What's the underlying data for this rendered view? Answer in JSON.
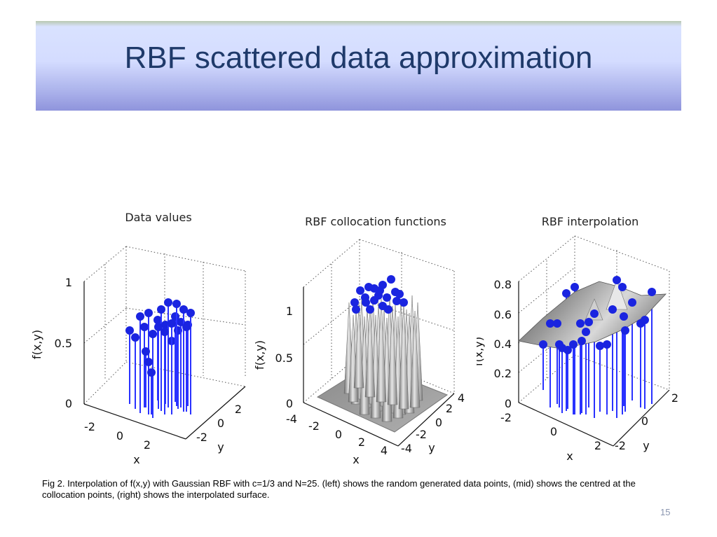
{
  "slide": {
    "title": "RBF scattered data approximation",
    "caption": "Fig 2. Interpolation of f(x,y) with Gaussian RBF with c=1/3 and N=25. (left) shows the random generated data points, (mid) shows the centred at the collocation points, (right) shows the interpolated surface.",
    "page_number": "15"
  },
  "colors": {
    "title_text": "#1f3a6a",
    "marker": "#1a24e0",
    "stem": "#2a32ff",
    "surface": "#9a9a9a"
  },
  "plots": [
    {
      "title": "Data values",
      "zlabel": "f(x,y)",
      "xlabel": "x",
      "ylabel": "y",
      "z_ticks": [
        "1",
        "0.5",
        "0"
      ],
      "x_ticks": [
        "-2",
        "0",
        "2"
      ],
      "y_ticks": [
        "2",
        "0",
        "-2"
      ]
    },
    {
      "title": "RBF collocation functions",
      "zlabel": "f(x,y)",
      "xlabel": "x",
      "ylabel": "y",
      "z_ticks": [
        "1",
        "0.5",
        "0"
      ],
      "x_ticks": [
        "-4",
        "-2",
        "0",
        "2",
        "4"
      ],
      "y_ticks": [
        "4",
        "2",
        "0",
        "-2",
        "-4"
      ]
    },
    {
      "title": "RBF interpolation",
      "zlabel": "f(x,y)",
      "xlabel": "x",
      "ylabel": "y",
      "z_ticks": [
        "0.8",
        "0.6",
        "0.4",
        "0.2",
        "0"
      ],
      "x_ticks": [
        "-2",
        "0",
        "2"
      ],
      "y_ticks": [
        "2",
        "0",
        "-2"
      ]
    }
  ]
}
